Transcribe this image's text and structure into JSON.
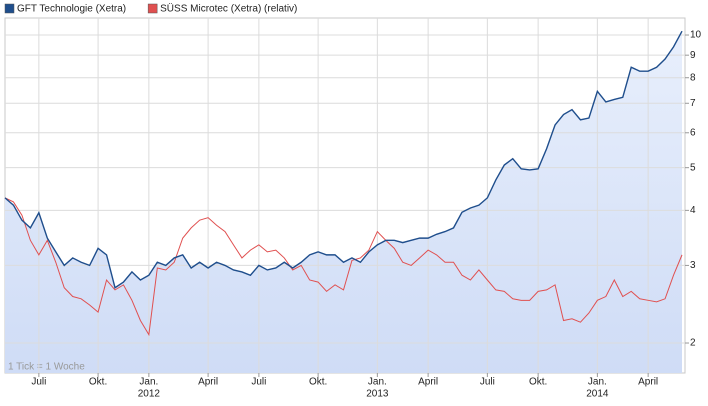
{
  "chart_data": {
    "type": "line",
    "log": true,
    "grid": true,
    "area_under": "GFT Technologie (Xetra)",
    "annotation": "1 Tick = 1 Woche",
    "categories": [
      null,
      null,
      null,
      null,
      "Juli",
      null,
      null,
      null,
      null,
      null,
      null,
      "Okt.",
      null,
      null,
      null,
      null,
      null,
      "Jan.",
      null,
      null,
      null,
      null,
      null,
      null,
      "April",
      null,
      null,
      null,
      null,
      null,
      "Juli",
      null,
      null,
      null,
      null,
      null,
      null,
      "Okt.",
      null,
      null,
      null,
      null,
      null,
      null,
      "Jan.",
      null,
      null,
      null,
      null,
      null,
      "April",
      null,
      null,
      null,
      null,
      null,
      null,
      "Juli",
      null,
      null,
      null,
      null,
      null,
      "Okt.",
      null,
      null,
      null,
      null,
      null,
      null,
      "Jan.",
      null,
      null,
      null,
      null,
      null,
      "April",
      null,
      null,
      null,
      null
    ],
    "category_years": [
      null,
      null,
      null,
      null,
      null,
      null,
      null,
      null,
      null,
      null,
      null,
      null,
      null,
      null,
      null,
      null,
      null,
      "2012",
      null,
      null,
      null,
      null,
      null,
      null,
      null,
      null,
      null,
      null,
      null,
      null,
      null,
      null,
      null,
      null,
      null,
      null,
      null,
      null,
      null,
      null,
      null,
      null,
      null,
      null,
      "2013",
      null,
      null,
      null,
      null,
      null,
      null,
      null,
      null,
      null,
      null,
      null,
      null,
      null,
      null,
      null,
      null,
      null,
      null,
      null,
      null,
      null,
      null,
      null,
      null,
      null,
      "2014",
      null,
      null,
      null,
      null,
      null,
      null,
      null,
      null,
      null,
      null
    ],
    "series": [
      {
        "name": "GFT Technologie (Xetra)",
        "color": "#1f4e8c",
        "values": [
          4.27,
          4.11,
          3.8,
          3.65,
          3.95,
          3.46,
          3.22,
          3.0,
          3.12,
          3.05,
          3.0,
          3.28,
          3.17,
          2.67,
          2.75,
          2.9,
          2.78,
          2.85,
          3.05,
          3.0,
          3.12,
          3.17,
          2.96,
          3.05,
          2.96,
          3.05,
          3.0,
          2.93,
          2.9,
          2.85,
          3.0,
          2.93,
          2.96,
          3.05,
          2.96,
          3.05,
          3.17,
          3.22,
          3.17,
          3.17,
          3.05,
          3.12,
          3.05,
          3.22,
          3.34,
          3.42,
          3.42,
          3.38,
          3.42,
          3.46,
          3.46,
          3.53,
          3.58,
          3.65,
          3.96,
          4.05,
          4.11,
          4.27,
          4.69,
          5.07,
          5.24,
          4.97,
          4.94,
          4.97,
          5.52,
          6.25,
          6.6,
          6.77,
          6.42,
          6.48,
          7.45,
          7.05,
          7.14,
          7.22,
          8.45,
          8.28,
          8.28,
          8.45,
          8.82,
          9.4,
          10.2
        ]
      },
      {
        "name": "SÜSS Microtec (Xetra) (relativ)",
        "color": "#e05050",
        "values": [
          4.27,
          4.18,
          3.9,
          3.42,
          3.17,
          3.42,
          3.05,
          2.67,
          2.55,
          2.52,
          2.44,
          2.35,
          2.78,
          2.64,
          2.71,
          2.5,
          2.25,
          2.09,
          2.96,
          2.93,
          3.05,
          3.46,
          3.65,
          3.8,
          3.85,
          3.7,
          3.58,
          3.34,
          3.12,
          3.25,
          3.34,
          3.22,
          3.25,
          3.12,
          2.93,
          3.0,
          2.78,
          2.75,
          2.62,
          2.71,
          2.64,
          3.08,
          3.12,
          3.25,
          3.58,
          3.42,
          3.28,
          3.05,
          3.0,
          3.12,
          3.25,
          3.17,
          3.05,
          3.05,
          2.85,
          2.78,
          2.93,
          2.78,
          2.64,
          2.62,
          2.52,
          2.5,
          2.5,
          2.62,
          2.64,
          2.71,
          2.25,
          2.27,
          2.23,
          2.34,
          2.5,
          2.55,
          2.78,
          2.55,
          2.62,
          2.52,
          2.5,
          2.48,
          2.52,
          2.85,
          3.17
        ]
      }
    ],
    "ylim": [
      1.71,
      10.93
    ],
    "yticks": [
      2,
      3,
      4,
      5,
      6,
      7,
      8,
      9,
      10
    ]
  }
}
